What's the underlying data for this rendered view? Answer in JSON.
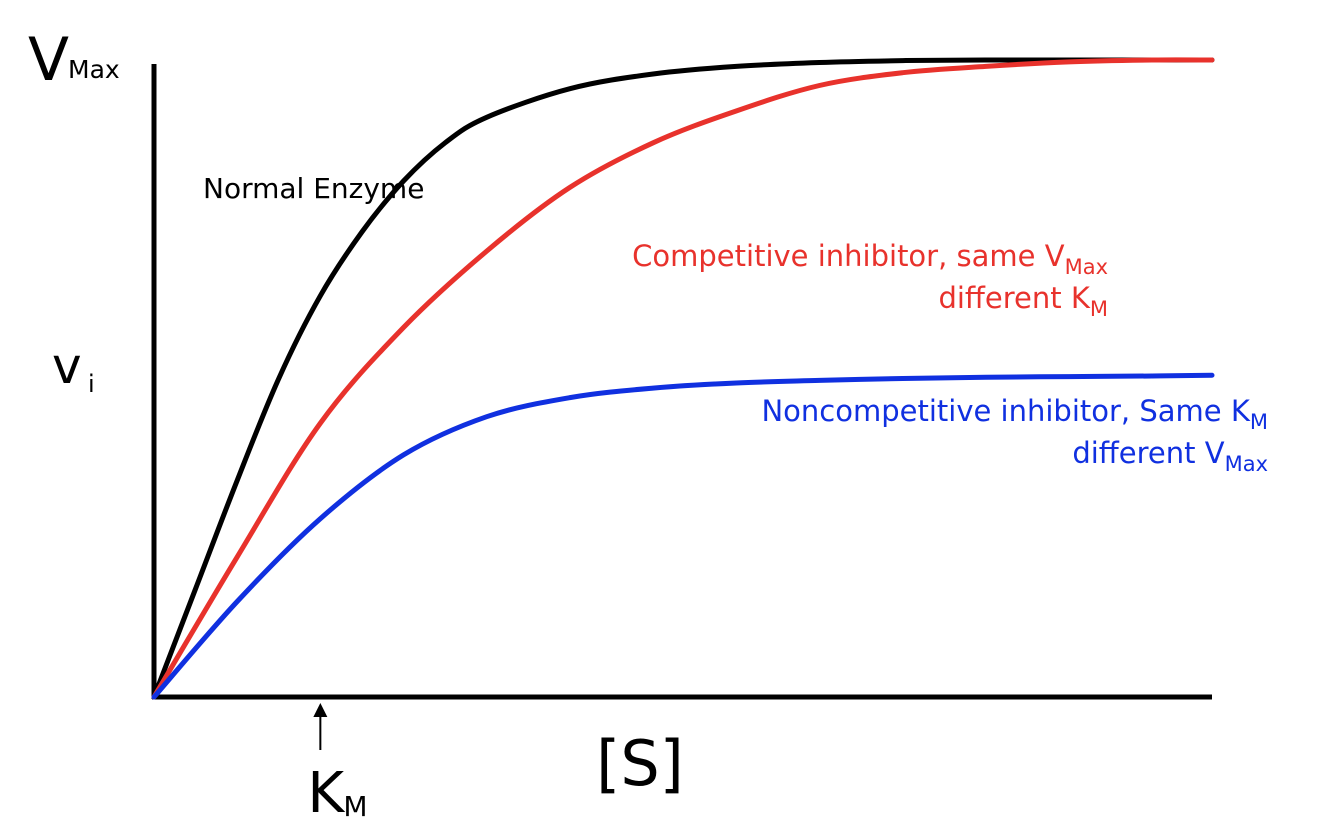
{
  "chart_data": {
    "type": "line",
    "y_top_label": {
      "main": "V",
      "sub": "Max"
    },
    "y_axis_label": {
      "main": "v",
      "sub": "i"
    },
    "x_axis_label": "[S]",
    "km_marker": {
      "main": "K",
      "sub": "M",
      "arrow_at_x": 1
    },
    "xlim": [
      0,
      6.36
    ],
    "ylim": [
      0,
      1
    ],
    "series": [
      {
        "name": "Normal Enzyme",
        "color": "#000000",
        "label_lines": [
          {
            "parts": [
              {
                "t": "Normal Enzyme"
              }
            ]
          }
        ],
        "x": [
          0,
          0.25,
          0.5,
          0.75,
          1,
          1.25,
          1.5,
          1.75,
          2,
          2.5,
          3,
          3.5,
          4,
          4.5,
          5,
          5.5,
          6,
          6.36
        ],
        "y": [
          0,
          0.17,
          0.34,
          0.5,
          0.63,
          0.73,
          0.81,
          0.87,
          0.91,
          0.955,
          0.978,
          0.99,
          0.996,
          0.999,
          1,
          1,
          1,
          1
        ]
      },
      {
        "name": "Competitive inhibitor, same VMax different KM",
        "color": "#e8322c",
        "label_lines": [
          {
            "parts": [
              {
                "t": "Competitive inhibitor,  same V"
              },
              {
                "t": "Max",
                "sub": true
              }
            ]
          },
          {
            "parts": [
              {
                "t": "different K"
              },
              {
                "t": "M",
                "sub": true
              }
            ]
          }
        ],
        "x": [
          0,
          0.5,
          1,
          1.5,
          2,
          2.5,
          3,
          3.5,
          4,
          4.5,
          5,
          5.5,
          6,
          6.36
        ],
        "y": [
          0,
          0.22,
          0.43,
          0.58,
          0.7,
          0.8,
          0.87,
          0.92,
          0.96,
          0.98,
          0.99,
          0.997,
          1,
          1
        ]
      },
      {
        "name": "Noncompetitive inhibitor, Same KM different VMax",
        "color": "#1030e0",
        "label_lines": [
          {
            "parts": [
              {
                "t": "Noncompetitive inhibitor,  Same K"
              },
              {
                "t": "M",
                "sub": true
              }
            ]
          },
          {
            "parts": [
              {
                "t": "different V"
              },
              {
                "t": "Max",
                "sub": true
              }
            ]
          }
        ],
        "x": [
          0,
          0.5,
          1,
          1.5,
          2,
          2.5,
          3,
          3.5,
          4,
          4.5,
          5,
          5.5,
          6,
          6.36
        ],
        "y": [
          0,
          0.15,
          0.28,
          0.38,
          0.44,
          0.47,
          0.485,
          0.493,
          0.497,
          0.5,
          0.502,
          0.503,
          0.504,
          0.505
        ]
      }
    ]
  }
}
